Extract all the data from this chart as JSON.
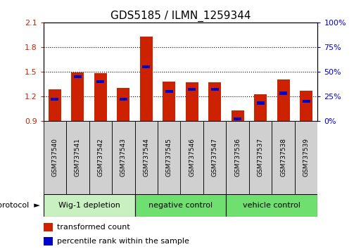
{
  "title": "GDS5185 / ILMN_1259344",
  "samples": [
    "GSM737540",
    "GSM737541",
    "GSM737542",
    "GSM737543",
    "GSM737544",
    "GSM737545",
    "GSM737546",
    "GSM737547",
    "GSM737536",
    "GSM737537",
    "GSM737538",
    "GSM737539"
  ],
  "transformed_count": [
    1.28,
    1.49,
    1.48,
    1.3,
    1.93,
    1.38,
    1.37,
    1.37,
    1.03,
    1.22,
    1.4,
    1.27
  ],
  "percentile_rank": [
    22,
    45,
    40,
    22,
    55,
    30,
    32,
    32,
    2,
    18,
    28,
    20
  ],
  "groups": [
    {
      "label": "Wig-1 depletion",
      "start": 0,
      "end": 4,
      "color": "#c8f0c0"
    },
    {
      "label": "negative control",
      "start": 4,
      "end": 8,
      "color": "#6fdf6f"
    },
    {
      "label": "vehicle control",
      "start": 8,
      "end": 12,
      "color": "#6fdf6f"
    }
  ],
  "ylim_left": [
    0.9,
    2.1
  ],
  "ylim_right": [
    0,
    100
  ],
  "yticks_left": [
    0.9,
    1.2,
    1.5,
    1.8,
    2.1
  ],
  "yticks_right": [
    0,
    25,
    50,
    75,
    100
  ],
  "bar_color": "#cc2200",
  "percentile_color": "#0000cc",
  "bar_bottom": 0.9,
  "background_color": "white",
  "title_fontsize": 11,
  "axis_color_left": "#cc2200",
  "axis_color_right": "#0000cc",
  "sample_box_color": "#d0d0d0",
  "protocol_label": "protocol"
}
